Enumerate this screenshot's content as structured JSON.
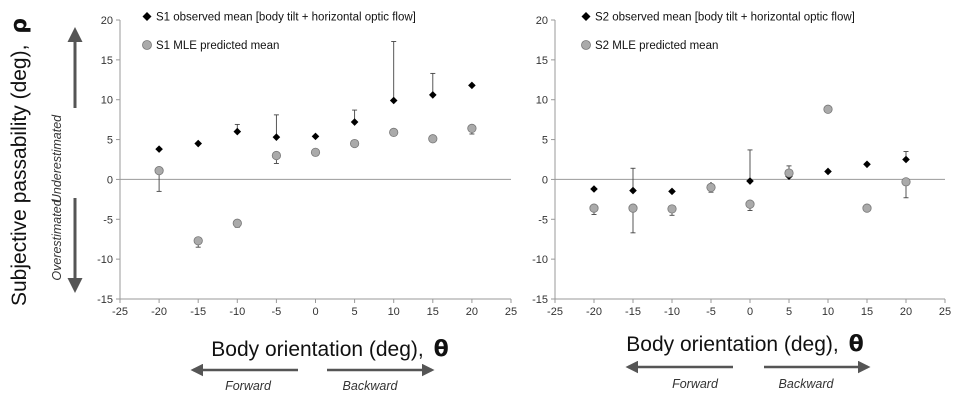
{
  "y_axis_label": {
    "text": "Subjective passability (deg),",
    "symbol": "ρ"
  },
  "under_label": "Underestimated",
  "over_label": "Overestimated",
  "panels": [
    {
      "x_axis_label": {
        "text": "Body orientation (deg),",
        "symbol": "θ"
      },
      "forward_label": "Forward",
      "backward_label": "Backward"
    },
    {
      "x_axis_label": {
        "text": "Body orientation (deg),",
        "symbol": "θ"
      },
      "forward_label": "Forward",
      "backward_label": "Backward"
    }
  ],
  "colors": {
    "observed": "#000000",
    "predicted": "#aaaaaa",
    "predicted_edge": "#777777",
    "axis": "#999999",
    "arrow": "#555555"
  },
  "chart_data": [
    {
      "type": "scatter",
      "xlim": [
        -25,
        25
      ],
      "ylim": [
        -15,
        20
      ],
      "x_ticks": [
        -25,
        -20,
        -15,
        -10,
        -5,
        0,
        5,
        10,
        15,
        20,
        25
      ],
      "y_ticks": [
        -15,
        -10,
        -5,
        0,
        5,
        10,
        15,
        20
      ],
      "x_tick_labels": [
        "-25",
        "-20",
        "-15",
        "-10",
        "-5",
        "0",
        "5",
        "10",
        "15",
        "20",
        "25"
      ],
      "y_tick_labels": [
        "-15",
        "-10",
        "-5",
        "0",
        "5",
        "10",
        "15",
        "20"
      ],
      "xlabel": "Body orientation (deg), θ",
      "ylabel": "Subjective passability (deg), ρ",
      "legend_position": "top-left",
      "grid": false,
      "series": [
        {
          "name": "S1 observed mean [body tilt + horizontal optic flow]",
          "marker": "diamond",
          "x": [
            -20,
            -15,
            -10,
            -5,
            0,
            5,
            10,
            15,
            20
          ],
          "y": [
            3.8,
            4.5,
            6.0,
            5.3,
            5.4,
            7.2,
            9.9,
            10.6,
            11.8
          ],
          "error_high": [
            null,
            null,
            6.9,
            8.1,
            null,
            8.7,
            17.3,
            13.3,
            null
          ],
          "error_low": [
            null,
            null,
            null,
            null,
            null,
            null,
            null,
            null,
            null
          ]
        },
        {
          "name": "S1 MLE predicted mean",
          "marker": "circle",
          "x": [
            -20,
            -15,
            -10,
            -5,
            0,
            5,
            10,
            15,
            20
          ],
          "y": [
            1.1,
            -7.7,
            -5.5,
            3.0,
            3.4,
            4.5,
            5.9,
            5.1,
            6.4
          ],
          "error_high": [
            null,
            null,
            null,
            null,
            null,
            null,
            null,
            null,
            null
          ],
          "error_low": [
            -1.5,
            -8.5,
            -6.0,
            2.0,
            null,
            null,
            null,
            null,
            5.7
          ]
        }
      ]
    },
    {
      "type": "scatter",
      "xlim": [
        -25,
        25
      ],
      "ylim": [
        -15,
        20
      ],
      "x_ticks": [
        -25,
        -20,
        -15,
        -10,
        -5,
        0,
        5,
        10,
        15,
        20,
        25
      ],
      "y_ticks": [
        -15,
        -10,
        -5,
        0,
        5,
        10,
        15,
        20
      ],
      "x_tick_labels": [
        "-25",
        "-20",
        "-15",
        "-10",
        "-5",
        "0",
        "5",
        "10",
        "15",
        "20",
        "25"
      ],
      "y_tick_labels": [
        "-15",
        "-10",
        "-5",
        "0",
        "5",
        "10",
        "15",
        "20"
      ],
      "xlabel": "Body orientation (deg), θ",
      "ylabel": "",
      "legend_position": "top-left",
      "grid": false,
      "series": [
        {
          "name": "S2 observed mean [body tilt + horizontal optic flow]",
          "marker": "diamond",
          "x": [
            -20,
            -15,
            -10,
            -5,
            0,
            5,
            10,
            15,
            20
          ],
          "y": [
            -1.2,
            -1.4,
            -1.5,
            -0.8,
            -0.2,
            0.4,
            1.0,
            1.9,
            2.5
          ],
          "error_high": [
            null,
            1.4,
            null,
            null,
            3.7,
            null,
            null,
            null,
            3.5
          ],
          "error_low": [
            null,
            null,
            null,
            null,
            null,
            null,
            null,
            null,
            null
          ]
        },
        {
          "name": "S2 MLE predicted mean",
          "marker": "circle",
          "x": [
            -20,
            -15,
            -10,
            -5,
            0,
            5,
            10,
            15,
            20
          ],
          "y": [
            -3.6,
            -3.6,
            -3.7,
            -1.0,
            -3.1,
            0.8,
            8.8,
            -3.6,
            -0.3
          ],
          "error_high": [
            null,
            null,
            null,
            null,
            null,
            1.7,
            null,
            null,
            null
          ],
          "error_low": [
            -4.4,
            -6.7,
            -4.5,
            -1.6,
            -3.9,
            null,
            null,
            null,
            -2.3
          ]
        }
      ]
    }
  ]
}
